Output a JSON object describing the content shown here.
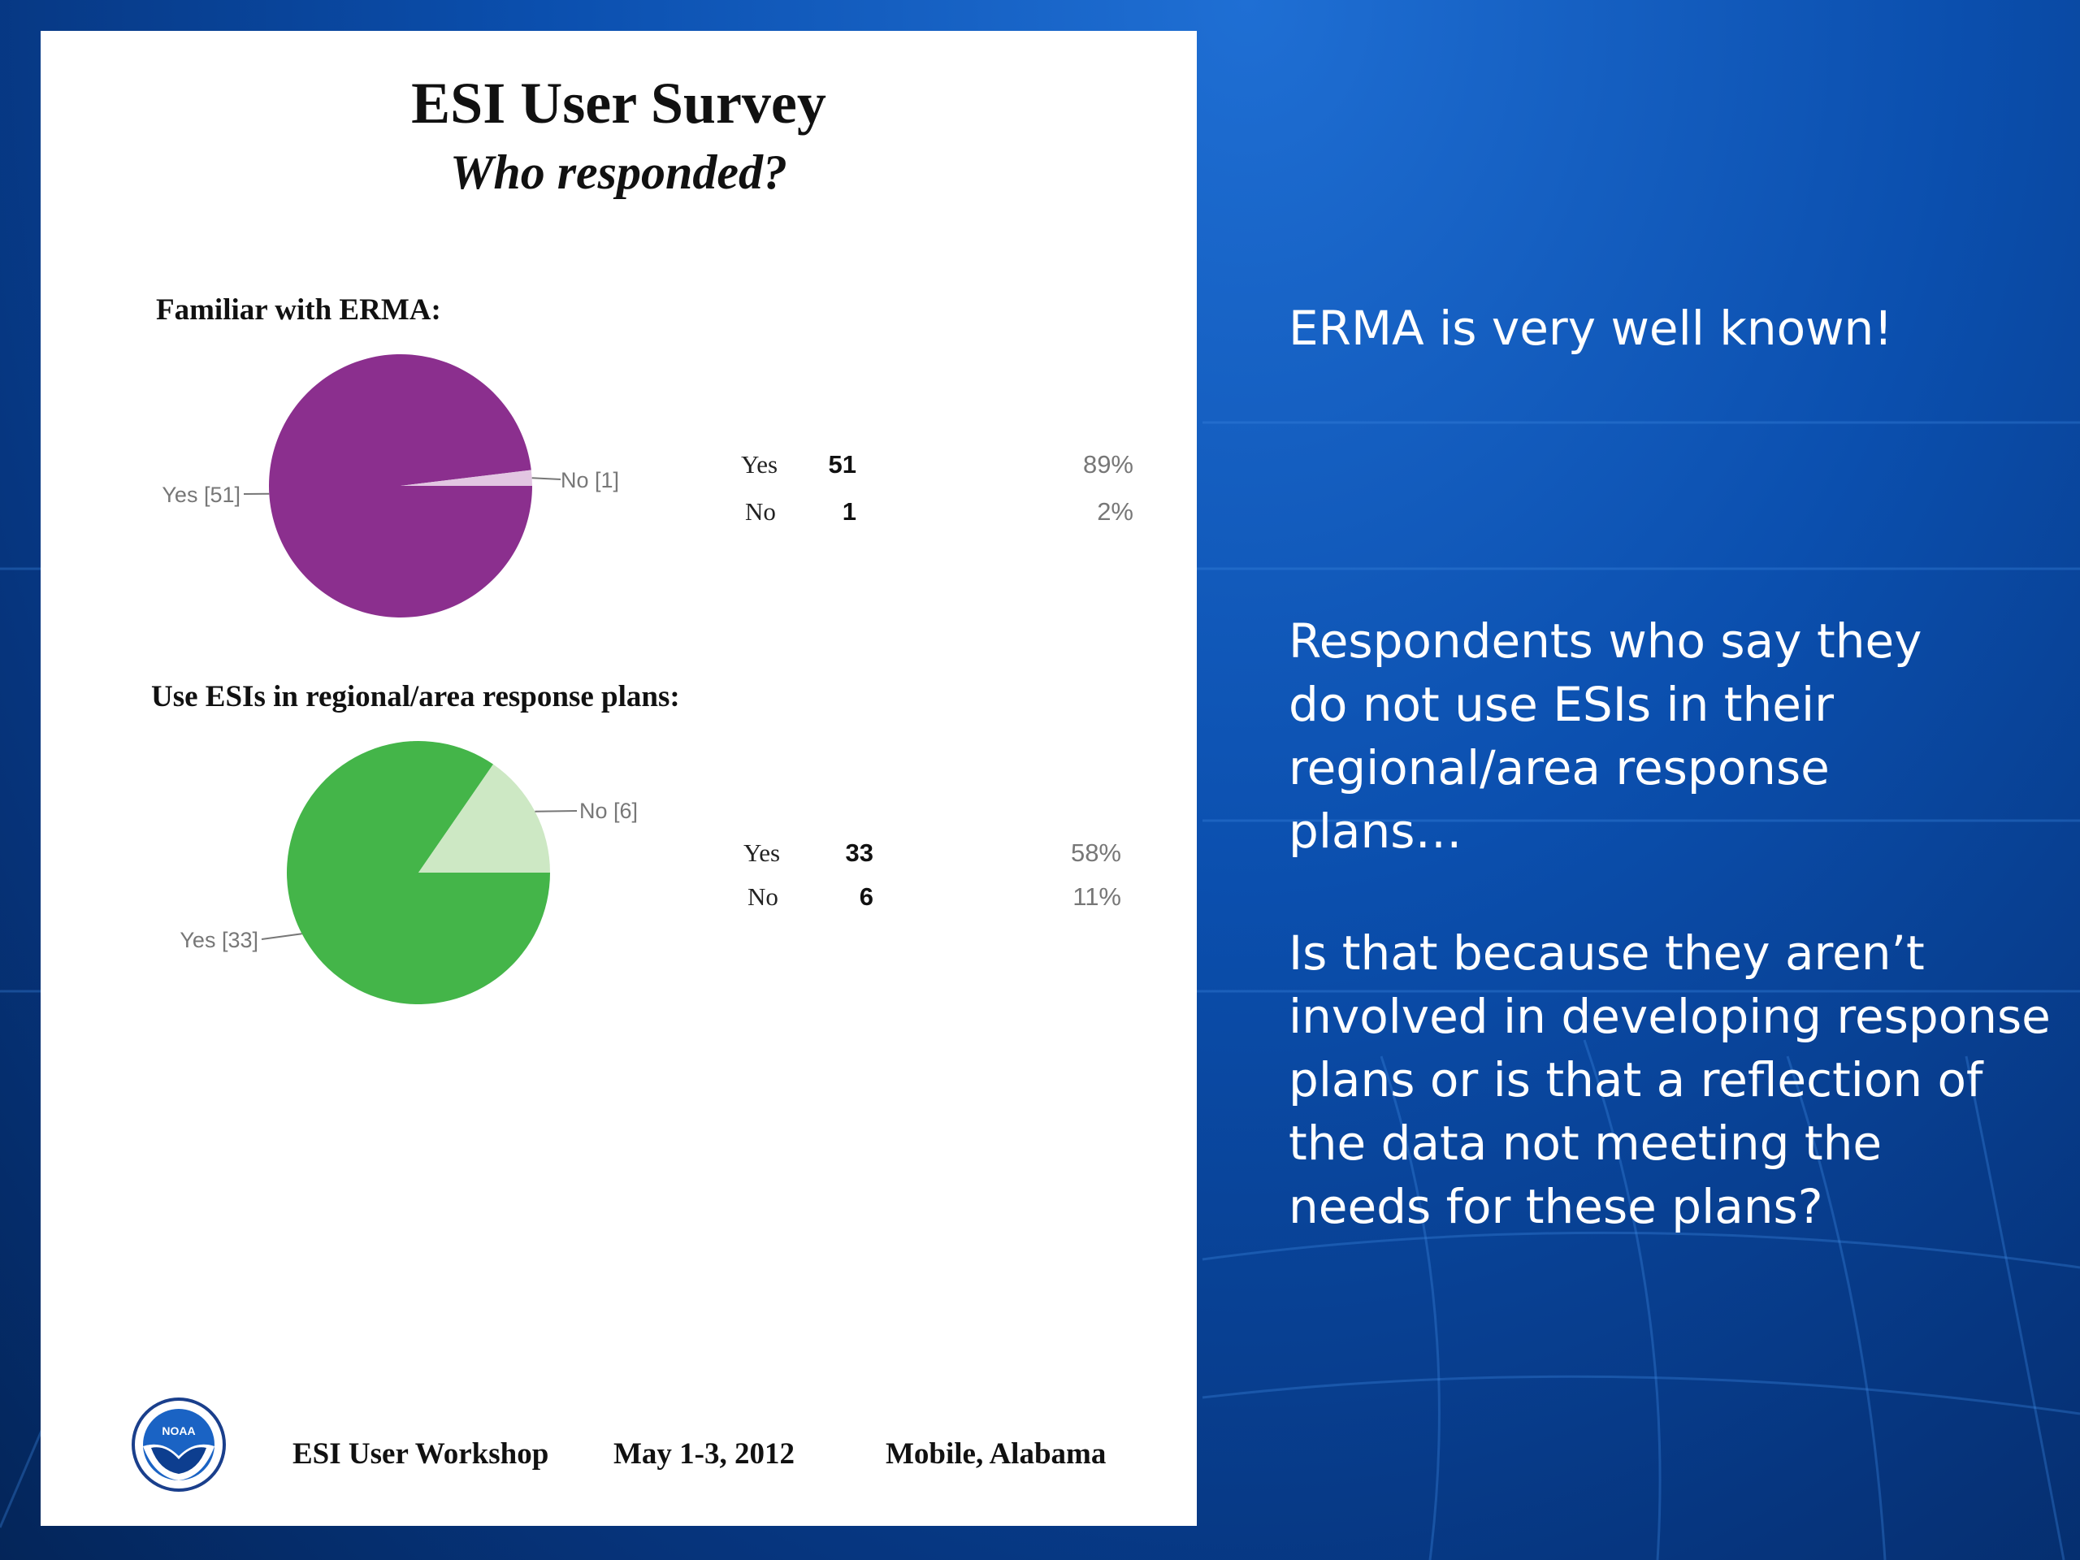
{
  "panel": {
    "title": "ESI User Survey",
    "subtitle": "Who responded?",
    "footer": {
      "event": "ESI User Workshop",
      "dates": "May 1-3, 2012",
      "location": "Mobile, Alabama",
      "logo_icon": "noaa-logo-icon"
    }
  },
  "chart_data": [
    {
      "type": "pie",
      "title": "Familiar with ERMA:",
      "categories": [
        "Yes",
        "No"
      ],
      "values": [
        51,
        1
      ],
      "percent_labels": [
        "89%",
        "2%"
      ],
      "slice_labels": [
        "Yes [51]",
        "No [1]"
      ],
      "count_labels": [
        "51",
        "1"
      ],
      "colors": [
        "#8b2f8e",
        "#e2c6e2"
      ],
      "legend": "table-right"
    },
    {
      "type": "pie",
      "title": "Use ESIs in regional/area response plans:",
      "categories": [
        "Yes",
        "No"
      ],
      "values": [
        33,
        6
      ],
      "percent_labels": [
        "58%",
        "11%"
      ],
      "slice_labels": [
        "Yes [33]",
        "No [6]"
      ],
      "count_labels": [
        "33",
        "6"
      ],
      "colors": [
        "#44b549",
        "#cde8c4"
      ],
      "legend": "table-right"
    }
  ],
  "right_text": {
    "note1": "ERMA is very well known!",
    "note2": "Respondents who say they\ndo not use ESIs in their\nregional/area response\nplans…",
    "note3": "Is that because they aren’t\ninvolved in developing response\nplans or is that a reflection of\nthe data not meeting the\nneeds for these plans?"
  }
}
